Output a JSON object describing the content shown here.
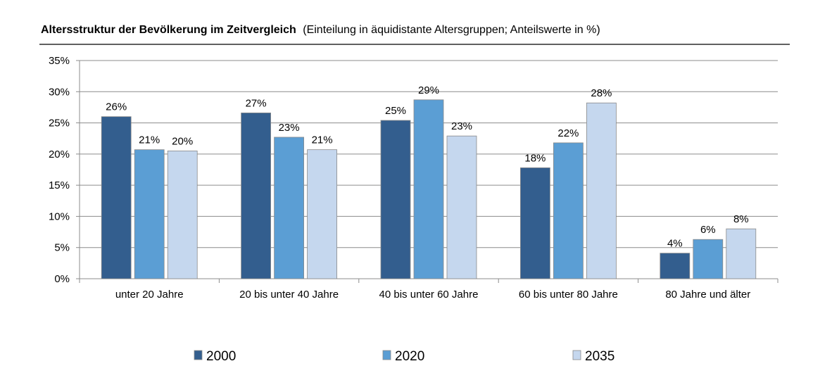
{
  "header": {
    "title": "Altersstruktur der Bevölkerung im Zeitvergleich",
    "subtitle": "(Einteilung in äquidistante Altersgruppen; Anteilswerte in %)"
  },
  "chart_data": {
    "type": "bar",
    "title": "Altersstruktur der Bevölkerung im Zeitvergleich",
    "subtitle": "(Einteilung in äquidistante Altersgruppen; Anteilswerte in %)",
    "xlabel": "",
    "ylabel": "",
    "ylim": [
      0,
      35
    ],
    "yticks": [
      0,
      5,
      10,
      15,
      20,
      25,
      30,
      35
    ],
    "ytick_labels": [
      "0%",
      "5%",
      "10%",
      "15%",
      "20%",
      "25%",
      "30%",
      "35%"
    ],
    "grid": true,
    "legend_position": "bottom",
    "categories": [
      "unter 20 Jahre",
      "20 bis unter 40 Jahre",
      "40 bis unter 60 Jahre",
      "60 bis unter 80 Jahre",
      "80 Jahre und älter"
    ],
    "series": [
      {
        "name": "2000",
        "color": "#335E8E",
        "values": [
          26,
          26.6,
          25.4,
          17.8,
          4.1
        ],
        "labels": [
          "26%",
          "27%",
          "25%",
          "18%",
          "4%"
        ]
      },
      {
        "name": "2020",
        "color": "#5B9ED4",
        "values": [
          20.7,
          22.7,
          28.7,
          21.8,
          6.3
        ],
        "labels": [
          "21%",
          "23%",
          "29%",
          "22%",
          "6%"
        ]
      },
      {
        "name": "2035",
        "color": "#C5D7EE",
        "values": [
          20.5,
          20.7,
          22.9,
          28.2,
          8
        ],
        "labels": [
          "20%",
          "21%",
          "23%",
          "28%",
          "8%"
        ]
      }
    ]
  }
}
